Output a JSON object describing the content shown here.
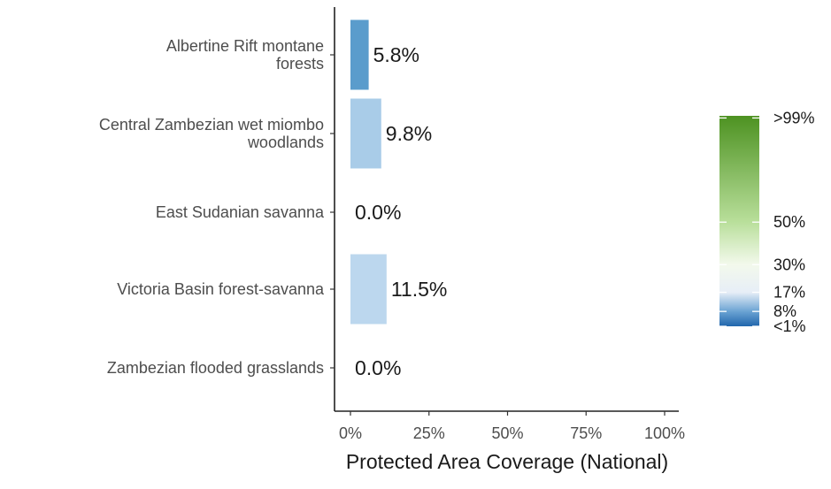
{
  "chart_data": {
    "type": "bar",
    "orientation": "horizontal",
    "categories": [
      [
        "Albertine Rift montane",
        "forests"
      ],
      [
        "Central Zambezian wet miombo",
        "woodlands"
      ],
      [
        "East Sudanian savanna"
      ],
      [
        "Victoria Basin forest-savanna"
      ],
      [
        "Zambezian flooded grasslands"
      ]
    ],
    "values": [
      5.8,
      9.8,
      0.0,
      11.5,
      0.0
    ],
    "value_labels": [
      "5.8%",
      "9.8%",
      "0.0%",
      "11.5%",
      "0.0%"
    ],
    "bar_colors": [
      "#5a9ccc",
      "#a9cce8",
      "#b2d4ec",
      "#bcd7ee",
      "#b2d4ec"
    ],
    "xlim": [
      0,
      100
    ],
    "x_ticks": [
      0,
      25,
      50,
      75,
      100
    ],
    "x_tick_labels": [
      "0%",
      "25%",
      "50%",
      "75%",
      "100%"
    ],
    "xlabel": "Protected Area Coverage (National)",
    "grid": false,
    "legend": {
      "position": "right",
      "type": "colorbar",
      "tick_values": [
        99,
        50,
        30,
        17,
        8,
        1
      ],
      "tick_labels": [
        ">99%",
        "50%",
        "30%",
        "17%",
        "8%",
        "<1%"
      ],
      "color_stops": [
        {
          "value": 1,
          "color": "#2166ac"
        },
        {
          "value": 8,
          "color": "#6ba3d3"
        },
        {
          "value": 17,
          "color": "#e7eef7"
        },
        {
          "value": 30,
          "color": "#f3f9ec"
        },
        {
          "value": 50,
          "color": "#b9df9b"
        },
        {
          "value": 100,
          "color": "#4d9221"
        }
      ]
    }
  }
}
